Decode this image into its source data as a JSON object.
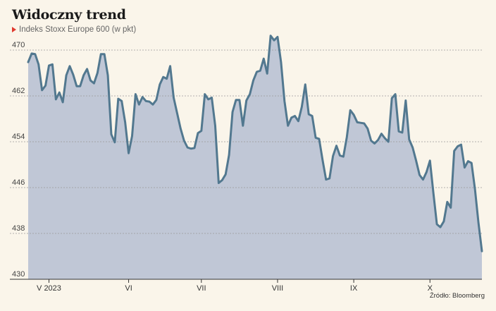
{
  "chart_data": {
    "type": "area",
    "title": "Widoczny trend",
    "subtitle": "Indeks Stoxx Europe 600 (w pkt)",
    "source": "Źródło: Bloomberg",
    "ylim": [
      430,
      470
    ],
    "yticks": [
      430,
      438,
      446,
      454,
      462,
      470
    ],
    "xticks": [
      {
        "label": "V 2023",
        "index": 6
      },
      {
        "label": "VI",
        "index": 29
      },
      {
        "label": "VII",
        "index": 50
      },
      {
        "label": "VIII",
        "index": 72
      },
      {
        "label": "IX",
        "index": 94
      },
      {
        "label": "X",
        "index": 116
      }
    ],
    "grid": true,
    "colors": {
      "line": "#52788f",
      "fill": "#c0c7d6",
      "grid": "#999999",
      "accent": "#e03a2f"
    },
    "series": [
      {
        "values": [
          467.9,
          469.4,
          469.3,
          467.5,
          463.0,
          463.8,
          467.3,
          467.5,
          461.4,
          462.6,
          460.9,
          465.6,
          467.2,
          465.7,
          463.7,
          463.7,
          465.6,
          466.7,
          464.7,
          464.2,
          466.0,
          469.3,
          469.3,
          465.6,
          455.3,
          453.9,
          461.5,
          461.1,
          457.4,
          452.0,
          455.0,
          462.3,
          460.5,
          461.8,
          461.1,
          461.0,
          460.5,
          461.3,
          464.0,
          465.3,
          465.0,
          467.2,
          461.7,
          459.0,
          456.3,
          454.2,
          453.0,
          452.8,
          452.9,
          455.5,
          455.9,
          462.3,
          461.4,
          461.7,
          456.8,
          446.8,
          447.3,
          448.3,
          451.7,
          459.2,
          461.3,
          461.3,
          456.8,
          461.2,
          462.3,
          464.7,
          466.2,
          466.4,
          468.5,
          465.9,
          472.5,
          471.7,
          472.3,
          467.9,
          461.1,
          456.8,
          458.2,
          458.5,
          457.6,
          460.1,
          464.0,
          458.8,
          458.5,
          454.7,
          454.5,
          450.8,
          447.4,
          447.6,
          451.5,
          453.3,
          451.6,
          451.4,
          454.8,
          459.5,
          458.7,
          457.4,
          457.3,
          457.2,
          456.3,
          454.2,
          453.7,
          454.3,
          455.4,
          454.6,
          454.0,
          461.6,
          462.3,
          455.8,
          455.6,
          461.2,
          454.4,
          453.0,
          450.7,
          448.2,
          447.4,
          448.7,
          450.7,
          445.0,
          439.6,
          439.1,
          440.1,
          443.5,
          442.5,
          452.4,
          453.2,
          453.5,
          449.5,
          450.6,
          450.3,
          445.7,
          439.9,
          434.9
        ]
      }
    ]
  }
}
